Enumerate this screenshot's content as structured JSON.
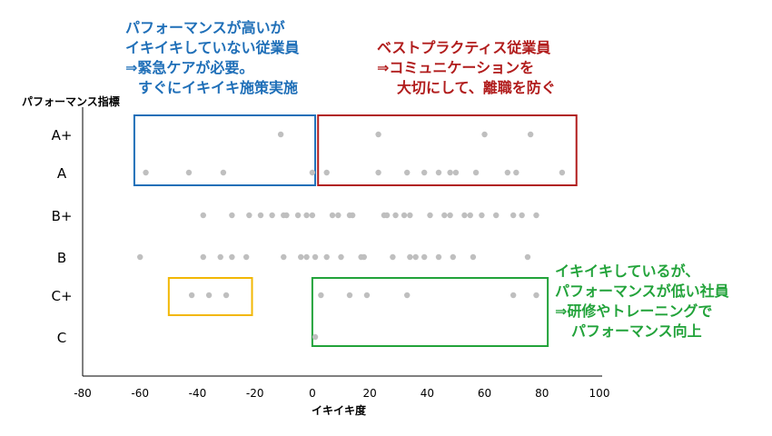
{
  "colors": {
    "point": "#bfbfbf",
    "axis": "#000000",
    "blue": "#1f6fb8",
    "red": "#b11c1c",
    "yellow": "#f2b705",
    "green": "#22a33a"
  },
  "annotations": {
    "blue": [
      "パフォーマンスが高いが",
      "イキイキしていない従業員",
      "⇒緊急ケアが必要。",
      "すぐにイキイキ施策実施"
    ],
    "red": [
      "ベストプラクティス従業員",
      "⇒コミュニケーションを",
      "大切にして、離職を防ぐ"
    ],
    "green": [
      "イキイキしているが、",
      "パフォーマンスが低い社員",
      "⇒研修やトレーニングで",
      "パフォーマンス向上"
    ]
  },
  "chart_data": {
    "type": "scatter",
    "xlabel": "イキイキ度",
    "ylabel": "パフォーマンス指標",
    "xlim": [
      -80,
      100
    ],
    "xticks": [
      -80,
      -60,
      -40,
      -20,
      0,
      20,
      40,
      60,
      80,
      100
    ],
    "categories": [
      "A+",
      "A",
      "B+",
      "B",
      "C+",
      "C"
    ],
    "points": {
      "A+": [
        -11,
        23,
        60,
        76
      ],
      "A": [
        -58,
        -43,
        -31,
        0,
        5,
        23,
        33,
        39,
        44,
        48,
        50,
        57,
        68,
        71,
        87
      ],
      "B+": [
        -38,
        -28,
        -22,
        -18,
        -14,
        -10,
        -9,
        -5,
        -2,
        0,
        7,
        9,
        13,
        14,
        25,
        26,
        29,
        32,
        34,
        41,
        46,
        48,
        53,
        55,
        59,
        64,
        70,
        73,
        78
      ],
      "B": [
        -60,
        -38,
        -32,
        -28,
        -23,
        -10,
        -4,
        -2,
        1,
        5,
        10,
        17,
        18,
        28,
        34,
        36,
        39,
        44,
        49,
        56,
        75
      ],
      "C+": [
        -42,
        -36,
        -30,
        3,
        13,
        19,
        33,
        70,
        78
      ],
      "C": [
        1
      ]
    },
    "regions": [
      {
        "color": "blue",
        "x": [
          -62,
          1
        ],
        "y": [
          "A+",
          "A"
        ]
      },
      {
        "color": "red",
        "x": [
          2,
          92
        ],
        "y": [
          "A+",
          "A"
        ]
      },
      {
        "color": "yellow",
        "x": [
          -50,
          -21
        ],
        "y": [
          "C+",
          "C+"
        ]
      },
      {
        "color": "green",
        "x": [
          0,
          82
        ],
        "y": [
          "C+",
          "C"
        ]
      }
    ]
  }
}
